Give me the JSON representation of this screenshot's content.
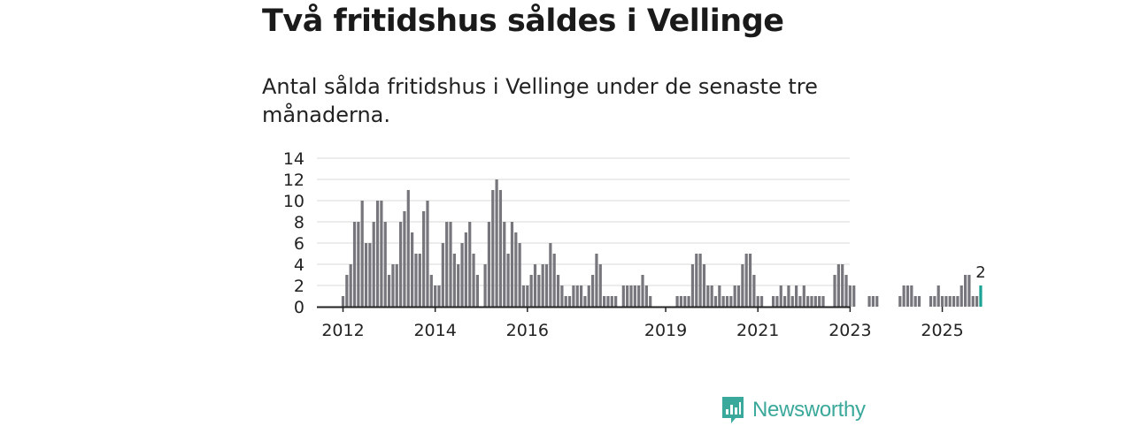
{
  "header": {
    "title": "Två fritidshus såldes i Vellinge",
    "subtitle": "Antal sålda fritidshus i Vellinge under de senaste tre månaderna."
  },
  "brand": {
    "name": "Newsworthy",
    "color": "#3aa89a"
  },
  "colors": {
    "bar": "#76767c",
    "highlight": "#1aa394",
    "grid": "#d9d9d9",
    "axis": "#222222"
  },
  "chart_data": {
    "type": "bar",
    "title": "",
    "xlabel": "",
    "ylabel": "",
    "ylim": [
      0,
      14
    ],
    "yticks": [
      0,
      2,
      4,
      6,
      8,
      10,
      12,
      14
    ],
    "x_tick_labels": [
      {
        "label": "2012",
        "index": 0
      },
      {
        "label": "2014",
        "index": 24
      },
      {
        "label": "2016",
        "index": 48
      },
      {
        "label": "2019",
        "index": 84
      },
      {
        "label": "2021",
        "index": 108
      },
      {
        "label": "2023",
        "index": 132
      },
      {
        "label": "2025",
        "index": 156
      }
    ],
    "first_month": "2012-01",
    "values": [
      1,
      3,
      4,
      8,
      8,
      10,
      6,
      6,
      8,
      10,
      10,
      8,
      3,
      4,
      4,
      8,
      9,
      11,
      7,
      5,
      5,
      9,
      10,
      3,
      2,
      2,
      6,
      8,
      8,
      5,
      4,
      6,
      7,
      8,
      5,
      3,
      0,
      4,
      8,
      11,
      12,
      11,
      8,
      5,
      8,
      7,
      6,
      2,
      2,
      3,
      4,
      3,
      4,
      4,
      6,
      5,
      3,
      2,
      1,
      1,
      2,
      2,
      2,
      1,
      2,
      3,
      5,
      4,
      1,
      1,
      1,
      1,
      0,
      2,
      2,
      2,
      2,
      2,
      3,
      2,
      1,
      0,
      0,
      0,
      0,
      0,
      0,
      1,
      1,
      1,
      1,
      4,
      5,
      5,
      4,
      2,
      2,
      1,
      2,
      1,
      1,
      1,
      2,
      2,
      4,
      5,
      5,
      3,
      1,
      1,
      0,
      0,
      1,
      1,
      2,
      1,
      2,
      1,
      2,
      1,
      2,
      1,
      1,
      1,
      1,
      1,
      0,
      0,
      3,
      4,
      4,
      3,
      2,
      2,
      0,
      0,
      0,
      1,
      1,
      1,
      0,
      0,
      0,
      0,
      0,
      1,
      2,
      2,
      2,
      1,
      1,
      0,
      0,
      1,
      1,
      2,
      1,
      1,
      1,
      1,
      1,
      2,
      3,
      3,
      1,
      1,
      2
    ],
    "highlight": {
      "index": 166,
      "value": 2,
      "label": "2"
    }
  }
}
